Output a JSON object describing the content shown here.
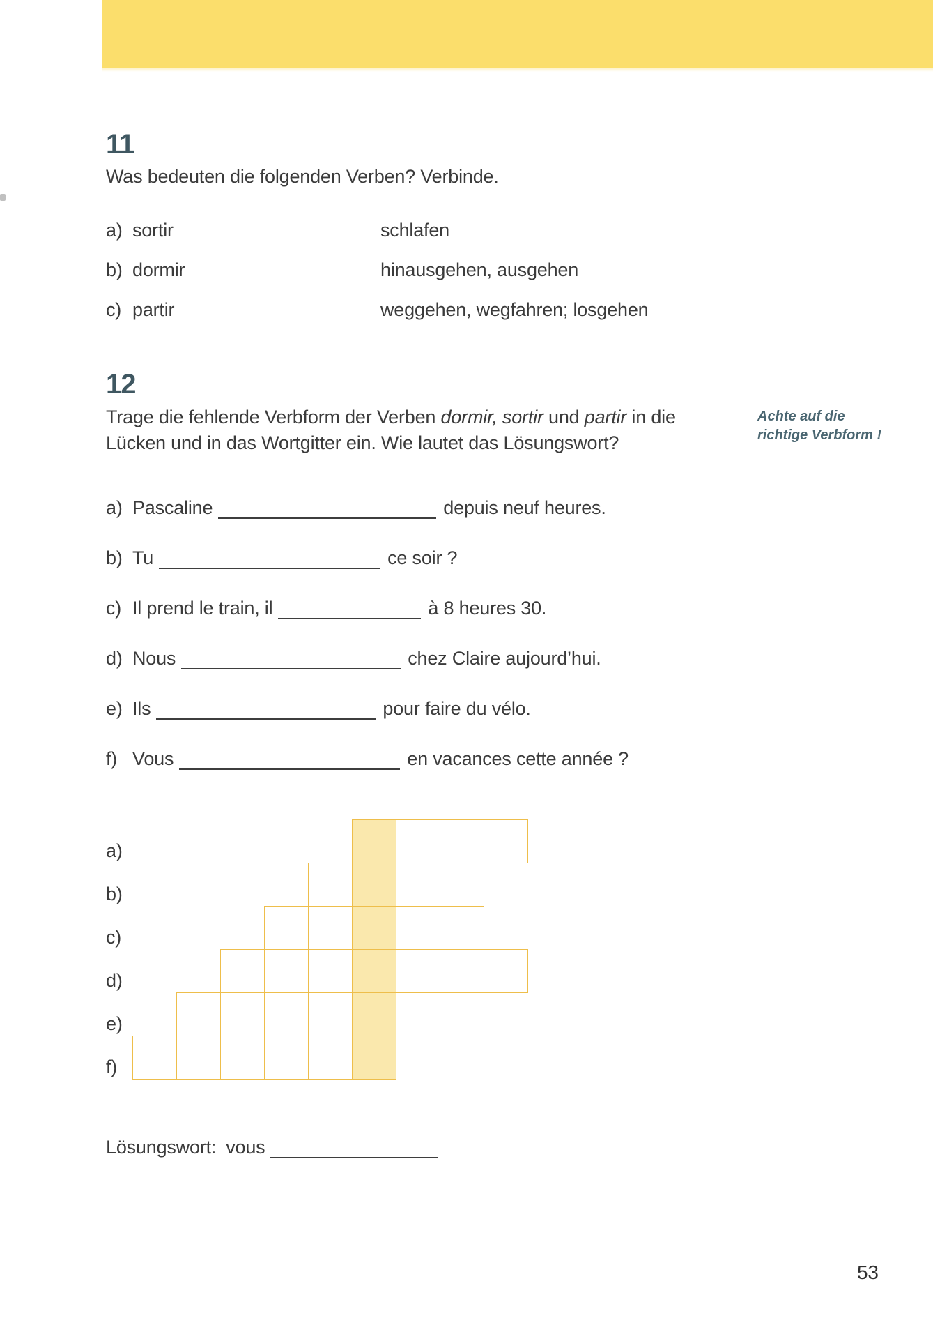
{
  "page": {
    "number": "53"
  },
  "colors": {
    "band": "#fbde6c",
    "accent": "#3f5761",
    "text": "#3b3b3b",
    "note": "#4a6671",
    "grid_line": "#eebe4b",
    "grid_fill": "#fae8ad"
  },
  "exercise11": {
    "number": "11",
    "prompt": "Was bedeuten die folgenden Verben? Verbinde.",
    "pairs": [
      {
        "label": "a)",
        "term": "sortir",
        "match": "schlafen"
      },
      {
        "label": "b)",
        "term": "dormir",
        "match": "hinausgehen, ausgehen"
      },
      {
        "label": "c)",
        "term": "partir",
        "match": "weggehen, wegfahren; losgehen"
      }
    ]
  },
  "exercise12": {
    "number": "12",
    "prompt_lines": [
      [
        {
          "t": "Trage die fehlende Verbform der Verben "
        },
        {
          "t": "dormir, sortir",
          "i": true
        },
        {
          "t": " und "
        },
        {
          "t": "partir",
          "i": true
        },
        {
          "t": " in die"
        }
      ],
      [
        {
          "t": "Lücken und in das Wortgitter ein. Wie lautet das Lösungswort?"
        }
      ]
    ],
    "margin_note": [
      "Achte auf die",
      "richtige Verbform !"
    ],
    "sentences": [
      {
        "label": "a)",
        "before": "Pascaline",
        "after": "depuis neuf heures.",
        "blank_width": 313
      },
      {
        "label": "b)",
        "before": "Tu",
        "after": "ce soir ?",
        "blank_width": 318
      },
      {
        "label": "c)",
        "before": "Il prend le train, il",
        "after": "à 8 heures 30.",
        "blank_width": 205
      },
      {
        "label": "d)",
        "before": "Nous",
        "after": "chez Claire aujourd’hui.",
        "blank_width": 315
      },
      {
        "label": "e)",
        "before": "Ils",
        "after": "pour faire du vélo.",
        "blank_width": 315
      },
      {
        "label": "f)",
        "before": "Vous",
        "after": "en vacances cette année ?",
        "blank_width": 317
      }
    ],
    "word_grid": {
      "highlight_col": 5,
      "rows": [
        {
          "label": "a)",
          "start": 5,
          "len": 4
        },
        {
          "label": "b)",
          "start": 4,
          "len": 4
        },
        {
          "label": "c)",
          "start": 3,
          "len": 4
        },
        {
          "label": "d)",
          "start": 2,
          "len": 7
        },
        {
          "label": "e)",
          "start": 1,
          "len": 7
        },
        {
          "label": "f)",
          "start": 0,
          "len": 6
        }
      ]
    },
    "solution": {
      "label": "Lösungswort:",
      "prefix": "vous"
    }
  }
}
